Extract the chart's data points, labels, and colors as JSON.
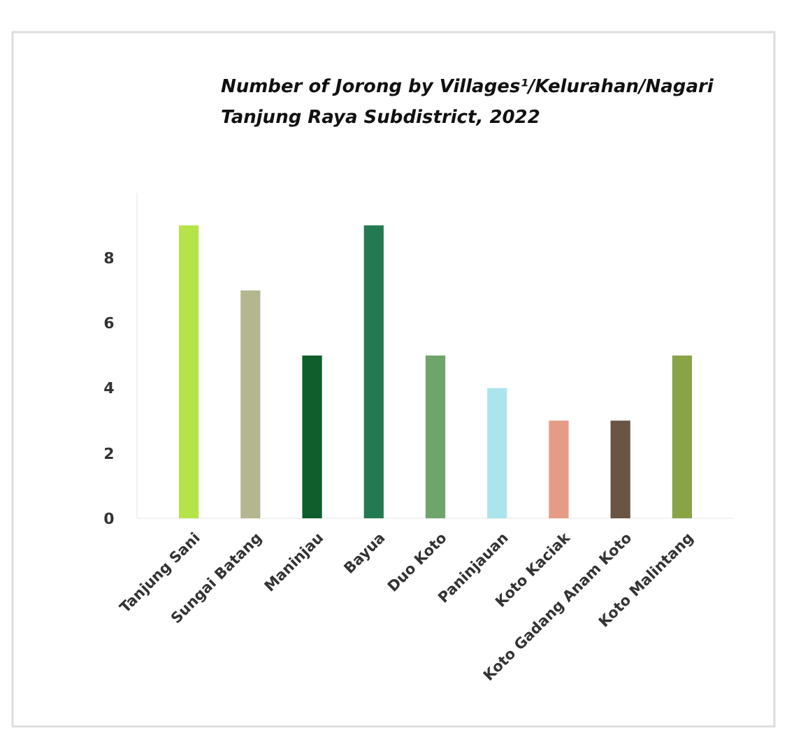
{
  "chart_data": {
    "type": "bar",
    "title": "Number of Jorong by Villages¹/Kelurahan/Nagari",
    "subtitle": "Tanjung Raya Subdistrict, 2022",
    "categories": [
      "Tanjung Sani",
      "Sungai Batang",
      "Maninjau",
      "Bayua",
      "Duo Koto",
      "Paninjauan",
      "Koto Kaciak",
      "Koto Gadang Anam Koto",
      "Koto Malintang"
    ],
    "values": [
      9,
      7,
      5,
      9,
      5,
      4,
      3,
      3,
      5
    ],
    "colors": [
      "#b5e44a",
      "#b3b68f",
      "#0f5e2c",
      "#237a52",
      "#6ea56a",
      "#ace4ee",
      "#e59c86",
      "#6a5444",
      "#88a447"
    ],
    "ylim": [
      0,
      10
    ],
    "yticks": [
      0,
      2,
      4,
      6,
      8
    ],
    "grid": false
  }
}
